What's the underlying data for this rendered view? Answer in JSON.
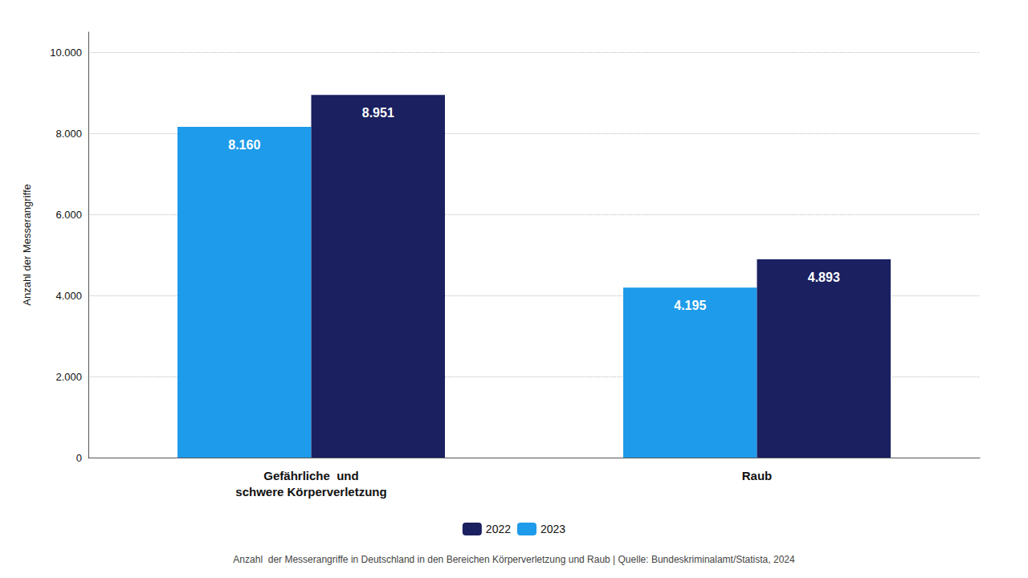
{
  "chart_data": {
    "type": "bar",
    "categories": [
      "Gefährliche  und\nschwere Körperverletzung",
      "Raub"
    ],
    "series": [
      {
        "name": "2023",
        "color": "#1e9bea",
        "values": [
          8160,
          4195
        ],
        "value_labels": [
          "8.160",
          "4.195"
        ]
      },
      {
        "name": "2022",
        "color": "#1a2060",
        "values": [
          8951,
          4893
        ],
        "value_labels": [
          "8.951",
          "4.893"
        ]
      }
    ],
    "ylabel": "Anzahl der Messerangriffe",
    "ylim": [
      0,
      10500
    ],
    "yticks": [
      0,
      {
        "value": 2000,
        "label": "2.000"
      },
      {
        "value": 4000,
        "label": "4.000"
      },
      {
        "value": 6000,
        "label": "6.000"
      },
      {
        "value": 8000,
        "label": "8.000"
      },
      {
        "value": 10000,
        "label": "10.000"
      }
    ],
    "caption": "Anzahl  der Messerangriffe in Deutschland in den Bereichen Körperverletzung und Raub | Quelle: Bundeskriminalamt/Statista, 2024",
    "data_labels": true,
    "grid": true,
    "legend": "bottom"
  }
}
